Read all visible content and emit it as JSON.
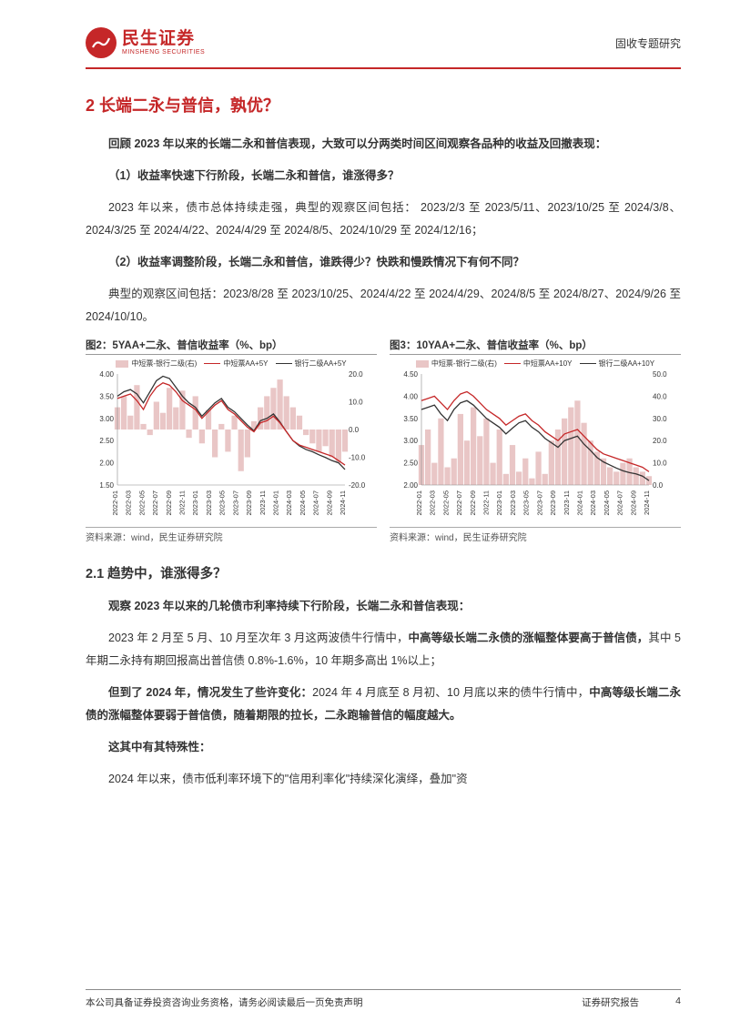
{
  "header": {
    "logo_cn": "民生证券",
    "logo_en": "MINSHENG SECURITIES",
    "right": "固收专题研究"
  },
  "section": {
    "title": "2 长端二永与普信，孰优？",
    "para1_a": "回顾 2023 年以来的长端二永和普信表现，大致可以分两类时间区间观察各品种的收益及回撤表现：",
    "sub1_title": "（1）收益率快速下行阶段，长端二永和普信，谁涨得多？",
    "para2": "2023 年以来，债市总体持续走强，典型的观察区间包括： 2023/2/3 至 2023/5/11、2023/10/25 至 2024/3/8、2024/3/25 至 2024/4/22、2024/4/29 至 2024/8/5、2024/10/29 至 2024/12/16；",
    "sub2_title": "（2）收益率调整阶段，长端二永和普信，谁跌得少？快跌和慢跌情况下有何不同？",
    "para3": "典型的观察区间包括：2023/8/28 至 2023/10/25、2024/4/22 至 2024/4/29、2024/8/5 至 2024/8/27、2024/9/26 至 2024/10/10。"
  },
  "fig2": {
    "title": "图2：5YAA+二永、普信收益率（%、bp）",
    "source": "资料来源：wind，民生证券研究院",
    "legend": [
      {
        "label": "中短票-银行二级(右)",
        "type": "fill",
        "color": "#e9c6c6"
      },
      {
        "label": "中短票AA+5Y",
        "type": "line",
        "color": "#c52728"
      },
      {
        "label": "银行二级AA+5Y",
        "type": "line",
        "color": "#333333"
      }
    ],
    "ylim_left": [
      1.5,
      4.0
    ],
    "ytick_left": [
      1.5,
      2.0,
      2.5,
      3.0,
      3.5,
      4.0
    ],
    "ylim_right": [
      -20.0,
      20.0
    ],
    "ytick_right": [
      -20.0,
      -10.0,
      0.0,
      10.0,
      20.0
    ],
    "xticks": [
      "2022-01",
      "2022-03",
      "2022-05",
      "2022-07",
      "2022-09",
      "2022-11",
      "2023-01",
      "2023-03",
      "2023-05",
      "2023-07",
      "2023-09",
      "2023-11",
      "2024-01",
      "2024-03",
      "2024-05",
      "2024-07",
      "2024-09",
      "2024-11"
    ],
    "bar_color": "#e9c6c6",
    "line1_color": "#c52728",
    "line2_color": "#333333",
    "bars": [
      8,
      12,
      5,
      16,
      2,
      -2,
      10,
      6,
      15,
      8,
      14,
      -3,
      12,
      -5,
      7,
      -10,
      2,
      -8,
      5,
      -15,
      -10,
      3,
      8,
      12,
      15,
      18,
      12,
      8,
      5,
      -2,
      -5,
      -8,
      -6,
      -10,
      -12,
      -8
    ],
    "line1": [
      3.45,
      3.5,
      3.55,
      3.4,
      3.2,
      3.5,
      3.7,
      3.8,
      3.75,
      3.6,
      3.4,
      3.3,
      3.2,
      3.0,
      3.15,
      3.3,
      3.4,
      3.2,
      3.1,
      2.95,
      2.8,
      2.7,
      2.9,
      2.95,
      3.05,
      2.9,
      2.7,
      2.5,
      2.4,
      2.35,
      2.3,
      2.25,
      2.2,
      2.15,
      2.05,
      1.95
    ],
    "line2": [
      3.5,
      3.6,
      3.65,
      3.55,
      3.35,
      3.6,
      3.85,
      3.95,
      3.9,
      3.7,
      3.5,
      3.35,
      3.25,
      3.05,
      3.2,
      3.35,
      3.45,
      3.25,
      3.15,
      3.0,
      2.85,
      2.72,
      2.95,
      3.0,
      3.1,
      2.92,
      2.7,
      2.5,
      2.38,
      2.3,
      2.25,
      2.18,
      2.12,
      2.05,
      2.0,
      1.85
    ]
  },
  "fig3": {
    "title": "图3：10YAA+二永、普信收益率（%、bp）",
    "source": "资料来源：wind，民生证券研究院",
    "legend": [
      {
        "label": "中短票-银行二级(右)",
        "type": "fill",
        "color": "#e9c6c6"
      },
      {
        "label": "中短票AA+10Y",
        "type": "line",
        "color": "#c52728"
      },
      {
        "label": "银行二级AA+10Y",
        "type": "line",
        "color": "#333333"
      }
    ],
    "ylim_left": [
      2.0,
      4.5
    ],
    "ytick_left": [
      2.0,
      2.5,
      3.0,
      3.5,
      4.0,
      4.5
    ],
    "ylim_right": [
      0.0,
      50.0
    ],
    "ytick_right": [
      0.0,
      10.0,
      20.0,
      30.0,
      40.0,
      50.0
    ],
    "xticks": [
      "2022-01",
      "2022-03",
      "2022-05",
      "2022-07",
      "2022-09",
      "2022-11",
      "2023-01",
      "2023-03",
      "2023-05",
      "2023-07",
      "2023-09",
      "2023-11",
      "2024-01",
      "2024-03",
      "2024-05",
      "2024-07",
      "2024-09",
      "2024-11"
    ],
    "bar_color": "#e9c6c6",
    "line1_color": "#c52728",
    "line2_color": "#333333",
    "bars": [
      18,
      25,
      10,
      30,
      8,
      12,
      32,
      20,
      35,
      22,
      30,
      10,
      25,
      5,
      18,
      6,
      12,
      3,
      15,
      5,
      20,
      25,
      30,
      35,
      38,
      28,
      20,
      15,
      12,
      8,
      6,
      10,
      12,
      8,
      6,
      4
    ],
    "line1": [
      3.9,
      3.95,
      4.0,
      3.85,
      3.7,
      3.9,
      4.05,
      4.1,
      4.0,
      3.85,
      3.7,
      3.6,
      3.5,
      3.35,
      3.45,
      3.55,
      3.6,
      3.45,
      3.35,
      3.2,
      3.1,
      3.0,
      3.15,
      3.2,
      3.25,
      3.1,
      2.95,
      2.8,
      2.7,
      2.65,
      2.6,
      2.55,
      2.5,
      2.45,
      2.4,
      2.3
    ],
    "line2": [
      3.7,
      3.75,
      3.8,
      3.6,
      3.45,
      3.7,
      3.85,
      3.9,
      3.8,
      3.65,
      3.5,
      3.4,
      3.3,
      3.15,
      3.28,
      3.4,
      3.45,
      3.3,
      3.2,
      3.05,
      2.95,
      2.85,
      3.0,
      3.05,
      3.1,
      2.92,
      2.78,
      2.62,
      2.52,
      2.45,
      2.38,
      2.32,
      2.28,
      2.25,
      2.2,
      2.1
    ]
  },
  "section2": {
    "title": "2.1 趋势中，谁涨得多？",
    "para1": "观察 2023 年以来的几轮债市利率持续下行阶段，长端二永和普信表现：",
    "para2_a": "2023 年 2 月至 5 月、10 月至次年 3 月这两波债牛行情中，",
    "para2_b": "中高等级长端二永债的涨幅整体要高于普信债，",
    "para2_c": "其中 5 年期二永持有期回报高出普信债 0.8%-1.6%，10 年期多高出 1%以上；",
    "para3_a": "但到了 2024 年，情况发生了些许变化：",
    "para3_b": "2024 年 4 月底至 8 月初、10 月底以来的债牛行情中，",
    "para3_c": "中高等级长端二永债的涨幅整体要弱于普信债，随着期限的拉长，二永跑输普信的幅度越大。",
    "para4_a": "这其中有其特殊性：",
    "para5": "2024 年以来，债市低利率环境下的\"信用利率化\"持续深化演绎，叠加\"资"
  },
  "footer": {
    "left": "本公司具备证券投资咨询业务资格，请务必阅读最后一页免责声明",
    "right_label": "证券研究报告",
    "page_num": "4"
  },
  "colors": {
    "accent": "#c52728",
    "text": "#333333",
    "bar_fill": "#e9c6c6",
    "grid": "#bbbbbb"
  }
}
